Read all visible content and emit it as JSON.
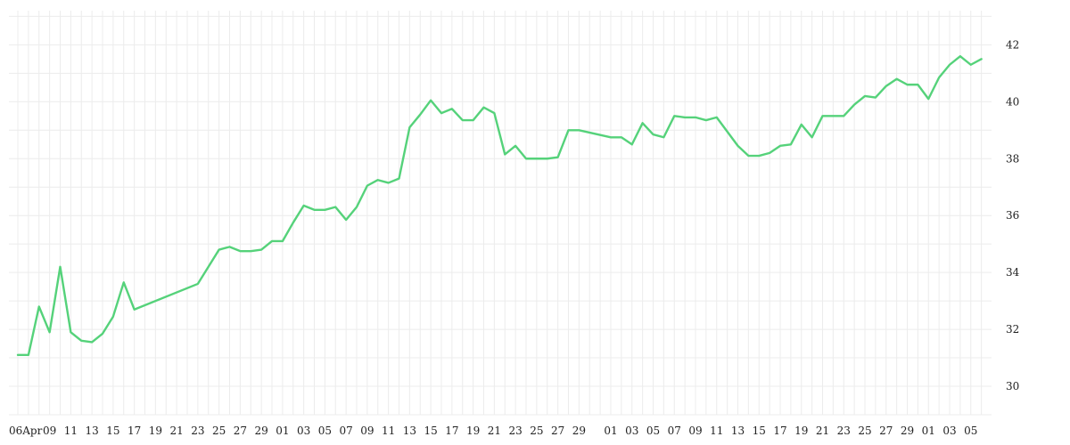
{
  "chart_data": {
    "type": "line",
    "title": "",
    "xlabel": "",
    "ylabel": "",
    "y_axis_side": "right",
    "ylim": [
      29,
      43.2
    ],
    "y_ticks": [
      30,
      32,
      34,
      36,
      38,
      40,
      42
    ],
    "grid": true,
    "line_color": "#55d27a",
    "x_tick_labels": [
      "06Apr",
      "09",
      "11",
      "13",
      "15",
      "17",
      "19",
      "21",
      "23",
      "25",
      "27",
      "29",
      "01",
      "03",
      "05",
      "07",
      "09",
      "11",
      "13",
      "15",
      "17",
      "19",
      "21",
      "23",
      "25",
      "27",
      "29",
      "01",
      "03",
      "05",
      "07",
      "09",
      "11",
      "13",
      "15",
      "17",
      "19",
      "21",
      "23",
      "25",
      "27",
      "29",
      "01",
      "03",
      "05"
    ],
    "x_tick_positions": [
      0,
      3,
      5,
      7,
      9,
      11,
      13,
      15,
      17,
      19,
      21,
      23,
      25,
      27,
      29,
      31,
      33,
      35,
      37,
      39,
      41,
      43,
      45,
      47,
      49,
      51,
      53,
      56,
      58,
      60,
      62,
      64,
      66,
      68,
      70,
      72,
      74,
      76,
      78,
      80,
      82,
      84,
      86,
      88,
      90
    ],
    "series": [
      {
        "name": "",
        "x": [
          0,
          1,
          2,
          3,
          4,
          5,
          6,
          7,
          8,
          9,
          10,
          11,
          17,
          18,
          19,
          20,
          21,
          22,
          23,
          24,
          25,
          26,
          27,
          28,
          29,
          30,
          31,
          32,
          33,
          34,
          35,
          36,
          37,
          38,
          39,
          40,
          41,
          42,
          43,
          44,
          45,
          46,
          47,
          48,
          49,
          50,
          51,
          52,
          53,
          56,
          57,
          58,
          59,
          60,
          61,
          62,
          63,
          64,
          65,
          66,
          67,
          68,
          69,
          70,
          71,
          72,
          73,
          74,
          75,
          76,
          77,
          78,
          79,
          80,
          81,
          82,
          83,
          84,
          85,
          86,
          87,
          88,
          89,
          90,
          91
        ],
        "y": [
          31.1,
          31.1,
          32.8,
          31.9,
          34.2,
          31.9,
          31.6,
          31.55,
          31.85,
          32.45,
          33.65,
          32.7,
          33.6,
          34.2,
          34.8,
          34.9,
          34.75,
          34.75,
          34.8,
          35.1,
          35.1,
          35.75,
          36.35,
          36.2,
          36.2,
          36.3,
          35.85,
          36.3,
          37.05,
          37.25,
          37.15,
          37.3,
          39.1,
          39.55,
          40.05,
          39.6,
          39.75,
          39.35,
          39.35,
          39.8,
          39.6,
          38.15,
          38.45,
          38,
          38,
          38,
          38.05,
          39,
          39,
          38.75,
          38.75,
          38.5,
          39.25,
          38.85,
          38.75,
          39.5,
          39.45,
          39.45,
          39.35,
          39.45,
          38.95,
          38.45,
          38.1,
          38.1,
          38.2,
          38.45,
          38.5,
          39.2,
          38.75,
          39.5,
          39.5,
          39.5,
          39.9,
          40.2,
          40.15,
          40.55,
          40.8,
          40.6,
          40.6,
          40.1,
          40.85,
          41.3,
          41.6,
          41.3,
          41.5
        ]
      }
    ]
  }
}
